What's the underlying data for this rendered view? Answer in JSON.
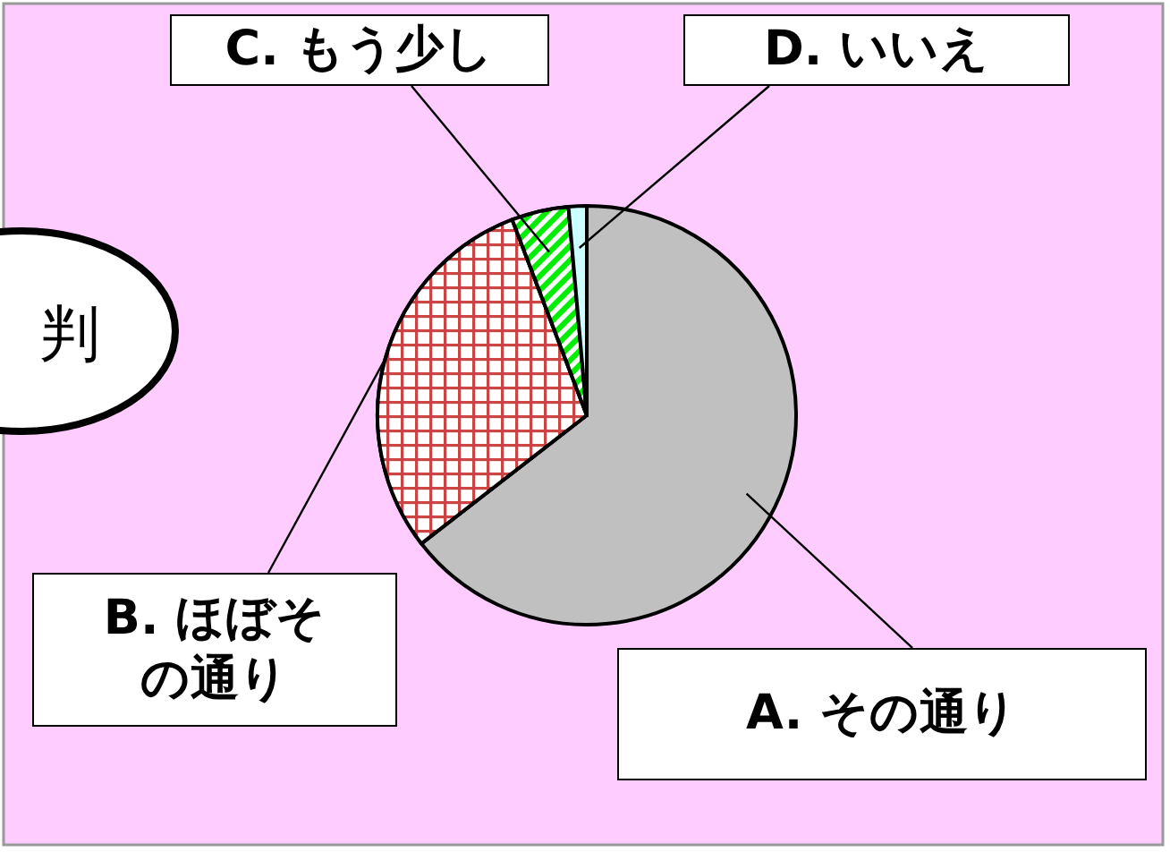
{
  "chart_data": {
    "type": "pie",
    "categories": [
      "A. その通り",
      "B. ほぼその通り",
      "C. もう少し",
      "D. いいえ"
    ],
    "values": [
      64.5,
      29.7,
      4.4,
      1.4
    ],
    "colors": [
      "#c0c0c0",
      "#cc4444",
      "#00ee00",
      "#ccffff"
    ],
    "annotations": [
      "判"
    ]
  }
}
